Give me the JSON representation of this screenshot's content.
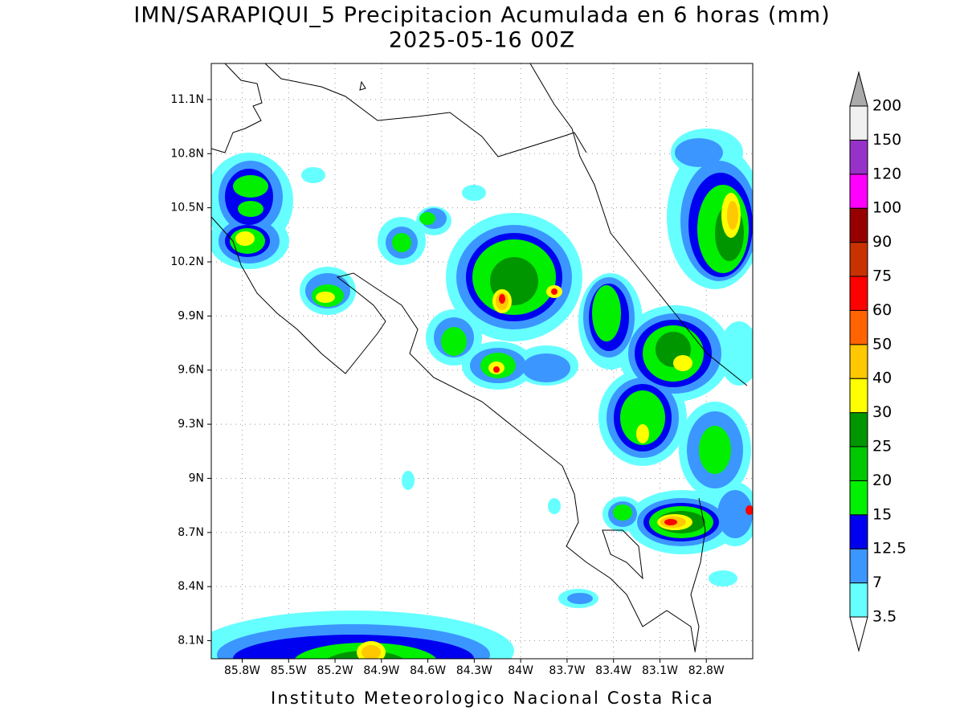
{
  "map": {
    "title": "IMN/SARAPIQUI_5 Precipitacion Acumulada en 6 horas (mm)",
    "subtitle": "2025-05-16 00Z",
    "footer": "Instituto Meteorologico Nacional Costa Rica",
    "xlim": [
      -86.0,
      -82.5
    ],
    "ylim": [
      8.0,
      11.3
    ],
    "xticks": [
      {
        "value": -85.8,
        "label": "85.8W"
      },
      {
        "value": -85.5,
        "label": "85.5W"
      },
      {
        "value": -85.2,
        "label": "85.2W"
      },
      {
        "value": -84.9,
        "label": "84.9W"
      },
      {
        "value": -84.6,
        "label": "84.6W"
      },
      {
        "value": -84.3,
        "label": "84.3W"
      },
      {
        "value": -84.0,
        "label": "84W"
      },
      {
        "value": -83.7,
        "label": "83.7W"
      },
      {
        "value": -83.4,
        "label": "83.4W"
      },
      {
        "value": -83.1,
        "label": "83.1W"
      },
      {
        "value": -82.8,
        "label": "82.8W"
      }
    ],
    "yticks": [
      {
        "value": 8.1,
        "label": "8.1N"
      },
      {
        "value": 8.4,
        "label": "8.4N"
      },
      {
        "value": 8.7,
        "label": "8.7N"
      },
      {
        "value": 9.0,
        "label": "9N"
      },
      {
        "value": 9.3,
        "label": "9.3N"
      },
      {
        "value": 9.6,
        "label": "9.6N"
      },
      {
        "value": 9.9,
        "label": "9.9N"
      },
      {
        "value": 10.2,
        "label": "10.2N"
      },
      {
        "value": 10.5,
        "label": "10.5N"
      },
      {
        "value": 10.8,
        "label": "10.8N"
      },
      {
        "value": 11.1,
        "label": "11.1N"
      }
    ],
    "grid": true,
    "colorbar": {
      "levels": [
        3.5,
        7,
        12.5,
        15,
        20,
        25,
        30,
        40,
        50,
        60,
        75,
        90,
        100,
        120,
        150,
        200
      ],
      "colors": [
        "#66ffff",
        "#3c96ff",
        "#0000f0",
        "#00f000",
        "#00c800",
        "#009600",
        "#ffff00",
        "#ffc800",
        "#ff6400",
        "#ff0000",
        "#c83200",
        "#960000",
        "#ff00ff",
        "#9632c8",
        "#f0f0f0"
      ],
      "under_color": "#ffffff",
      "over_color": "#aaaaaa"
    }
  }
}
